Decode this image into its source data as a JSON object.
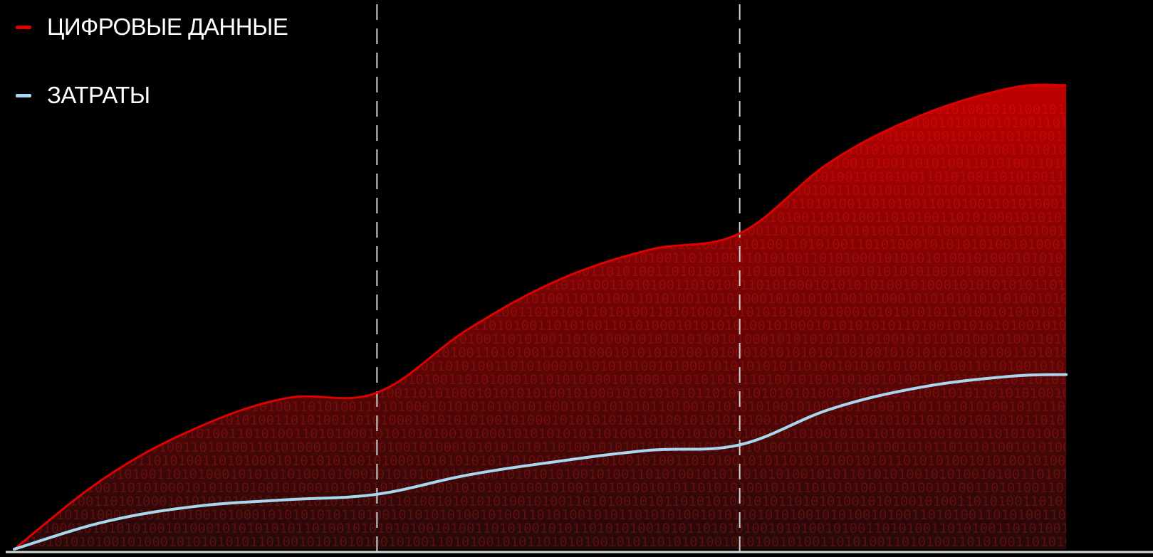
{
  "chart_data": {
    "type": "area",
    "title": "",
    "xlabel": "",
    "ylabel": "",
    "grid": false,
    "legend_position": "top-left",
    "phase_dividers_x": [
      1,
      2
    ],
    "xlim": [
      0,
      3
    ],
    "ylim": [
      0,
      100
    ],
    "series": [
      {
        "name": "ЦИФРОВЫЕ ДАННЫЕ",
        "color": "#e00000",
        "style": "filled-area",
        "x": [
          0,
          0.25,
          0.5,
          0.75,
          1,
          1.25,
          1.5,
          1.75,
          2,
          2.25,
          2.5,
          2.75,
          2.9
        ],
        "y": [
          0,
          13,
          22,
          27.5,
          28.5,
          40,
          49,
          54.5,
          57.5,
          70.5,
          79,
          84,
          84.5
        ]
      },
      {
        "name": "ЗАТРАТЫ",
        "color": "#a8d8f0",
        "style": "line",
        "x": [
          0,
          0.25,
          0.5,
          0.75,
          1,
          1.25,
          1.5,
          1.75,
          2,
          2.25,
          2.5,
          2.75,
          2.9
        ],
        "y": [
          0,
          5,
          7.8,
          9,
          10,
          13.5,
          16,
          18,
          19,
          25.5,
          29.5,
          31.5,
          31.8
        ]
      }
    ]
  },
  "background_pattern": "0110101001101010011010100110101000101010101001010001010101010110100101010101001010011010100101011010101001010110101010010101001010"
}
